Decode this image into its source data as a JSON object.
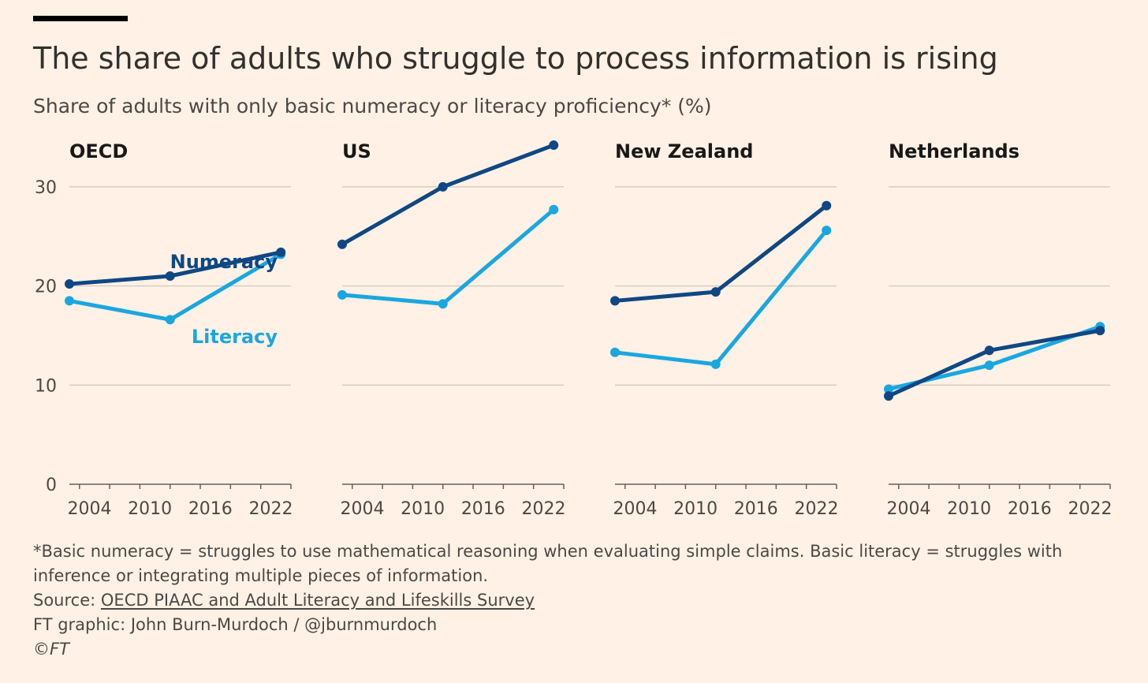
{
  "header": {
    "title": "The share of adults who struggle to process information is rising",
    "subtitle": "Share of adults with only basic numeracy or literacy proficiency* (%)"
  },
  "colors": {
    "numeracy": "#0f4784",
    "literacy": "#1aa7e0",
    "grid": "#cfc6bd",
    "axis": "#66605c"
  },
  "chart_data": {
    "type": "line",
    "ylim": [
      0,
      35
    ],
    "yticks": [
      0,
      10,
      20,
      30
    ],
    "xlim": [
      2002,
      2024
    ],
    "xticks": [
      2004,
      2010,
      2016,
      2022
    ],
    "xlabel": "",
    "ylabel": "",
    "annotations": [
      {
        "panel": "OECD",
        "text": "Numeracy",
        "series": "Numeracy"
      },
      {
        "panel": "OECD",
        "text": "Literacy",
        "series": "Literacy"
      }
    ],
    "panels": [
      {
        "title": "OECD",
        "series": [
          {
            "name": "Numeracy",
            "x": [
              2002,
              2012,
              2023
            ],
            "values": [
              20.2,
              21.0,
              23.4
            ]
          },
          {
            "name": "Literacy",
            "x": [
              2002,
              2012,
              2023
            ],
            "values": [
              18.5,
              16.6,
              23.2
            ]
          }
        ]
      },
      {
        "title": "US",
        "series": [
          {
            "name": "Numeracy",
            "x": [
              2002,
              2012,
              2023
            ],
            "values": [
              24.2,
              30.0,
              34.2
            ]
          },
          {
            "name": "Literacy",
            "x": [
              2002,
              2012,
              2023
            ],
            "values": [
              19.1,
              18.2,
              27.7
            ]
          }
        ]
      },
      {
        "title": "New Zealand",
        "series": [
          {
            "name": "Numeracy",
            "x": [
              2002,
              2012,
              2023
            ],
            "values": [
              18.5,
              19.4,
              28.1
            ]
          },
          {
            "name": "Literacy",
            "x": [
              2002,
              2012,
              2023
            ],
            "values": [
              13.3,
              12.1,
              25.6
            ]
          }
        ]
      },
      {
        "title": "Netherlands",
        "series": [
          {
            "name": "Numeracy",
            "x": [
              2002,
              2012,
              2023
            ],
            "values": [
              8.9,
              13.5,
              15.5
            ]
          },
          {
            "name": "Literacy",
            "x": [
              2002,
              2012,
              2023
            ],
            "values": [
              9.6,
              12.0,
              15.9
            ]
          }
        ]
      }
    ]
  },
  "footer": {
    "note": "*Basic numeracy = struggles to use mathematical reasoning when evaluating simple claims. Basic literacy = struggles with inference or integrating multiple pieces of information.",
    "source_prefix": "Source: ",
    "source_link": "OECD PIAAC and Adult Literacy and Lifeskills Survey",
    "credit": "FT graphic: John Burn-Murdoch / @jburnmurdoch",
    "copyright": "©FT"
  }
}
